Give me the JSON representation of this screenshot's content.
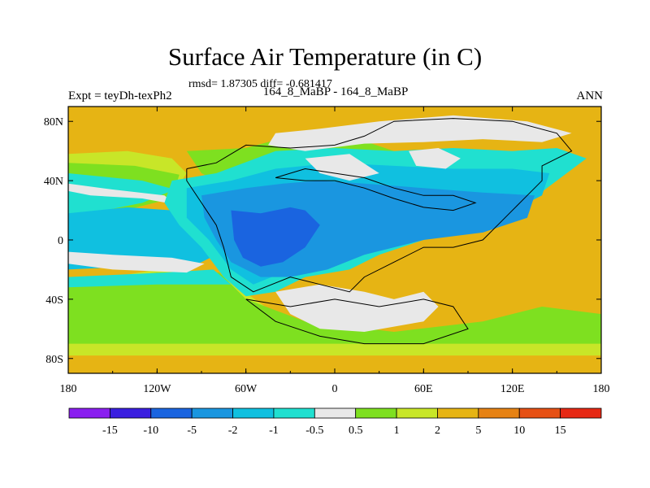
{
  "title": "Surface Air Temperature (in C)",
  "stats": "rmsd= 1.87305 diff= -0.681417",
  "left_string": "Expt = teyDh-texPh2",
  "center_string": "164_8_MaBP - 164_8_MaBP",
  "right_string": "ANN",
  "map": {
    "projection": "cylindrical-equidistant",
    "lon_range": [
      -180,
      180
    ],
    "lat_range": [
      -90,
      90
    ],
    "x_ticks": [
      {
        "value": -180,
        "label": "180"
      },
      {
        "value": -120,
        "label": "120W"
      },
      {
        "value": -60,
        "label": "60W"
      },
      {
        "value": 0,
        "label": "0"
      },
      {
        "value": 60,
        "label": "60E"
      },
      {
        "value": 120,
        "label": "120E"
      },
      {
        "value": 180,
        "label": "180"
      }
    ],
    "y_ticks": [
      {
        "value": 80,
        "label": "80N"
      },
      {
        "value": 40,
        "label": "40N"
      },
      {
        "value": 0,
        "label": "0"
      },
      {
        "value": -40,
        "label": "40S"
      },
      {
        "value": -80,
        "label": "80S"
      }
    ]
  },
  "colorbar": {
    "labels": [
      "-15",
      "-10",
      "-5",
      "-2",
      "-1",
      "-0.5",
      "0.5",
      "1",
      "2",
      "5",
      "10",
      "15"
    ],
    "colors": [
      "#8a1ef0",
      "#3a1ee0",
      "#1a64e0",
      "#1a96e0",
      "#10c0e0",
      "#20e0d0",
      "#e8e8e8",
      "#7ee020",
      "#c8e628",
      "#e6b414",
      "#e68214",
      "#e65014",
      "#e62814"
    ]
  },
  "colors": {
    "c_neg5": "#1a64e0",
    "c_neg2": "#1a96e0",
    "c_neg1": "#10c0e0",
    "c_neg05": "#20e0d0",
    "c_zero": "#e8e8e8",
    "c_pos05": "#7ee020",
    "c_pos1": "#c8e628",
    "c_pos2": "#e6b414"
  }
}
